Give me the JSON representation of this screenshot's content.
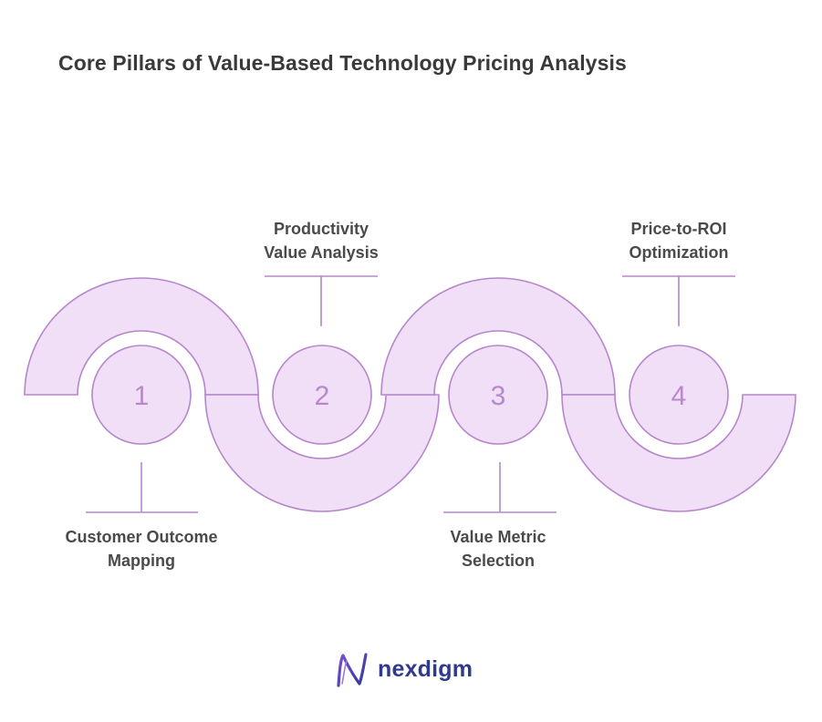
{
  "title": "Core Pillars of Value-Based Technology Pricing Analysis",
  "colors": {
    "fill": "#f0dff6",
    "stroke": "#b586cc",
    "number": "#b888cc",
    "title": "#3a3a3a",
    "label": "#4a4a4a",
    "brand": "#2f3a8f"
  },
  "steps": [
    {
      "number": "1",
      "label_lines": [
        "Customer Outcome",
        "Mapping"
      ]
    },
    {
      "number": "2",
      "label_lines": [
        "Productivity",
        "Value Analysis"
      ]
    },
    {
      "number": "3",
      "label_lines": [
        "Value Metric",
        "Selection"
      ]
    },
    {
      "number": "4",
      "label_lines": [
        "Price-to-ROI",
        "Optimization"
      ]
    }
  ],
  "brand": {
    "name": "nexdigm",
    "icon": "nexdigm-logo-icon"
  }
}
